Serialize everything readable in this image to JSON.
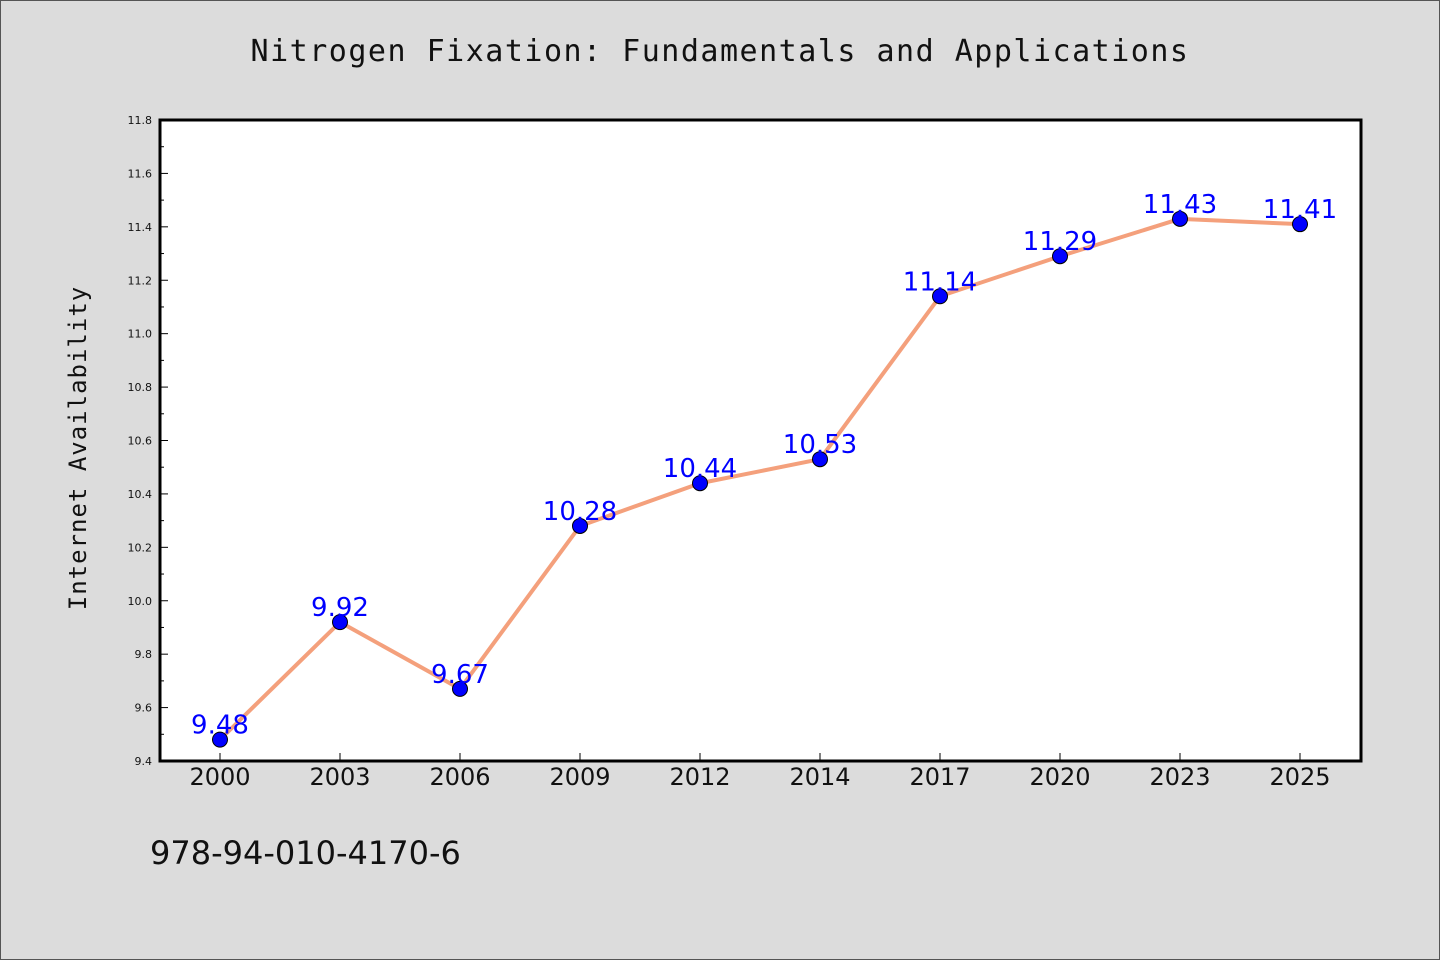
{
  "title": "Nitrogen Fixation: Fundamentals and Applications",
  "footer_text": "978-94-010-4170-6",
  "chart_data": {
    "type": "line",
    "title": "Nitrogen Fixation: Fundamentals and Applications",
    "xlabel": "",
    "ylabel": "Internet Availability",
    "categories": [
      "2000",
      "2003",
      "2006",
      "2009",
      "2012",
      "2014",
      "2017",
      "2020",
      "2023",
      "2025"
    ],
    "values": [
      9.48,
      9.92,
      9.67,
      10.28,
      10.44,
      10.53,
      11.14,
      11.29,
      11.43,
      11.41
    ],
    "data_labels": [
      "9.48",
      "9.92",
      "9.67",
      "10.28",
      "10.44",
      "10.53",
      "11.14",
      "11.29",
      "11.43",
      "11.41"
    ],
    "ylim": [
      9.4,
      11.8
    ],
    "yticks": [
      "9.4",
      "9.6",
      "9.8",
      "10.0",
      "10.2",
      "10.4",
      "10.6",
      "10.8",
      "11.0",
      "11.2",
      "11.4",
      "11.6",
      "11.8"
    ],
    "grid": false,
    "legend": "none",
    "line_color": "#f4a07c",
    "marker_color": "#0000ff",
    "label_color": "#0000ff"
  }
}
